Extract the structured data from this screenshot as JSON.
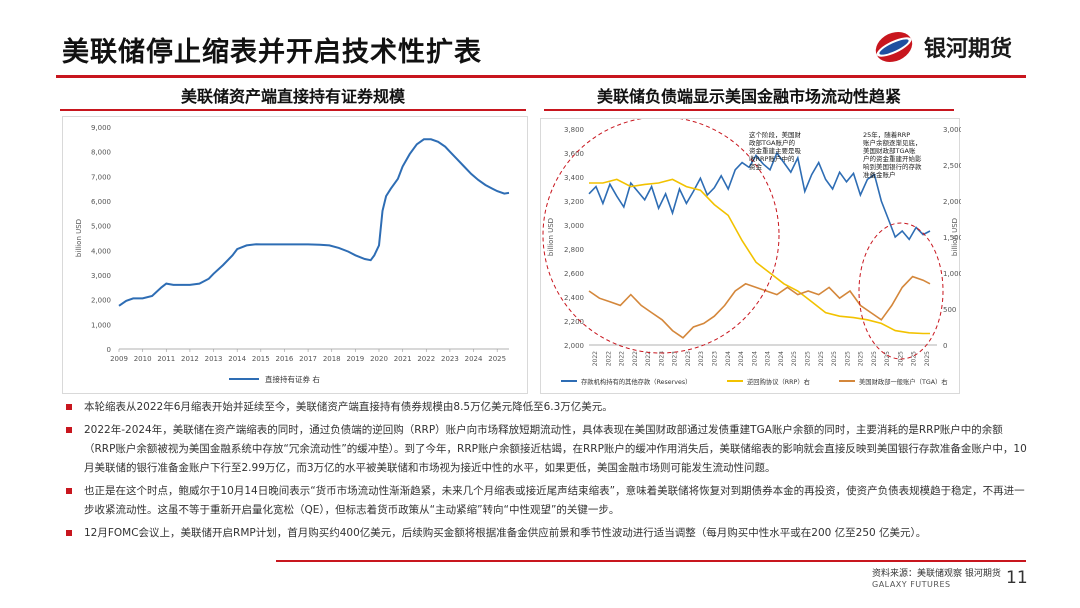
{
  "page": {
    "title": "美联储停止缩表并开启技术性扩表",
    "brand": "银河期货",
    "left_panel_title": "美联储资产端直接持有证券规模",
    "right_panel_title": "美联储负债端显示美国金融市场流动性趋紧",
    "source": "资料来源：美联储观察 银河期货",
    "galaxy": "GALAXY FUTURES",
    "page_number": "11"
  },
  "bullets": [
    "本轮缩表从2022年6月缩表开始并延续至今，美联储资产端直接持有债券规模由8.5万亿美元降低至6.3万亿美元。",
    "2022年-2024年，美联储在资产端缩表的同时，通过负债端的逆回购（RRP）账户向市场释放短期流动性，具体表现在美国财政部通过发债重建TGA账户余额的同时，主要消耗的是RRP账户中的余额（RRP账户余额被视为美国金融系统中存放“冗余流动性”的缓冲垫）。到了今年，RRP账户余额接近枯竭，在RRP账户的缓冲作用消失后，美联储缩表的影响就会直接反映到美国银行存款准备金账户中，10月美联储的银行准备金账户下行至2.99万亿，而3万亿的水平被美联储和市场视为接近中性的水平，如果更低，美国金融市场则可能发生流动性问题。",
    "也正是在这个时点，鲍威尔于10月14日晚间表示“货币市场流动性渐渐趋紧，未来几个月缩表或接近尾声结束缩表”，意味着美联储将恢复对到期债券本金的再投资，使资产负债表规模趋于稳定，不再进一步收紧流动性。这虽不等于重新开启量化宽松（QE），但标志着货币政策从“主动紧缩”转向“中性观望”的关键一步。",
    "12月FOMC会议上，美联储开启RMP计划，首月购买约400亿美元，后续购买金额将根据准备金供应前景和季节性波动进行适当调整（每月购买中性水平或在200 亿至250 亿美元）。"
  ],
  "chart_data": [
    {
      "type": "line",
      "ylabel": "billion USD",
      "ylim": [
        0,
        9000
      ],
      "yticks": [
        "0",
        "1,000",
        "2,000",
        "3,000",
        "4,000",
        "5,000",
        "6,000",
        "7,000",
        "8,000",
        "9,000"
      ],
      "xlim": [
        2009,
        2025.5
      ],
      "xticks": [
        "2009",
        "2010",
        "2011",
        "2012",
        "2013",
        "2014",
        "2015",
        "2016",
        "2017",
        "2018",
        "2019",
        "2020",
        "2021",
        "2022",
        "2023",
        "2024",
        "2025"
      ],
      "legend": "top-left-bottom",
      "colors": {
        "line": "#2e6db4"
      },
      "series": [
        {
          "name": "直接持有证券 右",
          "x": [
            2009.0,
            2009.3,
            2009.6,
            2010.0,
            2010.4,
            2010.8,
            2011.0,
            2011.3,
            2011.6,
            2012.0,
            2012.4,
            2012.8,
            2013.0,
            2013.4,
            2013.8,
            2014.0,
            2014.4,
            2014.8,
            2015.0,
            2015.5,
            2016.0,
            2016.5,
            2017.0,
            2017.5,
            2017.9,
            2018.3,
            2018.7,
            2019.0,
            2019.4,
            2019.65,
            2019.8,
            2020.0,
            2020.15,
            2020.3,
            2020.5,
            2020.8,
            2021.0,
            2021.3,
            2021.6,
            2021.9,
            2022.2,
            2022.5,
            2022.8,
            2023.0,
            2023.3,
            2023.6,
            2023.9,
            2024.2,
            2024.5,
            2024.8,
            2025.0,
            2025.3,
            2025.5
          ],
          "values": [
            1750,
            1950,
            2050,
            2050,
            2150,
            2500,
            2650,
            2600,
            2600,
            2600,
            2650,
            2850,
            3050,
            3400,
            3800,
            4050,
            4200,
            4250,
            4240,
            4240,
            4240,
            4240,
            4240,
            4230,
            4200,
            4100,
            3950,
            3800,
            3650,
            3600,
            3800,
            4200,
            5600,
            6200,
            6500,
            6900,
            7400,
            7900,
            8300,
            8500,
            8500,
            8400,
            8200,
            8000,
            7700,
            7400,
            7100,
            6850,
            6650,
            6500,
            6400,
            6300,
            6330
          ]
        }
      ]
    },
    {
      "type": "line",
      "ylabel": "billion USD",
      "ylim": [
        2000,
        3800
      ],
      "yticks": [
        "2,000",
        "2,200",
        "2,400",
        "2,600",
        "2,800",
        "3,000",
        "3,200",
        "3,400",
        "3,600",
        "3,800"
      ],
      "y2lim": [
        0,
        3000
      ],
      "y2ticks": [
        "0",
        "500",
        "1,000",
        "1,500",
        "2,000",
        "2,500",
        "3,000"
      ],
      "xlim": [
        0,
        100
      ],
      "xticks": [
        "2022",
        "2022",
        "2022",
        "2022",
        "2022",
        "2023",
        "2023",
        "2023",
        "2023",
        "2023",
        "2024",
        "2024",
        "2024",
        "2024",
        "2024",
        "2025",
        "2025",
        "2025",
        "2025",
        "2025",
        "2025",
        "2025",
        "2025",
        "2025",
        "2025",
        "2025"
      ],
      "annotations": [
        "这个阶段，美国财政部TGA账户的资金重建主要是吸收RRP账户中的资金",
        "25年，随着RRP账户余额逐渐见底，美国财政部TGA账户的资金重建开始影响到美国银行的存款准备金账户"
      ],
      "legend": "bottom",
      "colors": {
        "reserves": "#2e6db4",
        "rrp": "#f2c200",
        "tga": "#d4873b",
        "highlight": "#c8161e"
      },
      "series": [
        {
          "name": "存款机构持有的其他存款（Reserves）",
          "axis": "left",
          "x": [
            0,
            2,
            4,
            6,
            8,
            10,
            12,
            14,
            16,
            18,
            20,
            22,
            24,
            26,
            28,
            30,
            32,
            34,
            36,
            38,
            40,
            42,
            44,
            46,
            48,
            50,
            52,
            54,
            56,
            58,
            60,
            62,
            64,
            66,
            68,
            70,
            72,
            74,
            76,
            78,
            80,
            82,
            84,
            86,
            88,
            90,
            92,
            94,
            96,
            98
          ],
          "values": [
            3260,
            3320,
            3180,
            3340,
            3240,
            3150,
            3350,
            3280,
            3210,
            3320,
            3140,
            3260,
            3100,
            3300,
            3180,
            3280,
            3390,
            3250,
            3310,
            3410,
            3300,
            3460,
            3520,
            3480,
            3580,
            3510,
            3460,
            3600,
            3520,
            3440,
            3560,
            3280,
            3420,
            3520,
            3380,
            3300,
            3440,
            3360,
            3430,
            3250,
            3380,
            3420,
            3200,
            3050,
            2900,
            2950,
            2880,
            2980,
            2920,
            2950
          ]
        },
        {
          "name": "逆回购协议（RRP）右",
          "axis": "right",
          "x": [
            0,
            4,
            8,
            12,
            16,
            20,
            24,
            28,
            32,
            36,
            40,
            44,
            48,
            52,
            56,
            60,
            64,
            68,
            72,
            76,
            80,
            84,
            88,
            92,
            96,
            98
          ],
          "values": [
            2250,
            2250,
            2300,
            2200,
            2230,
            2250,
            2300,
            2200,
            2150,
            1950,
            1800,
            1450,
            1150,
            1000,
            850,
            750,
            600,
            450,
            400,
            380,
            350,
            300,
            200,
            170,
            160,
            160
          ]
        },
        {
          "name": "美国财政部一般账户（TGA）右",
          "axis": "right",
          "x": [
            0,
            3,
            6,
            9,
            12,
            15,
            18,
            21,
            24,
            27,
            30,
            33,
            36,
            39,
            42,
            45,
            48,
            51,
            54,
            57,
            60,
            63,
            66,
            69,
            72,
            75,
            78,
            81,
            84,
            87,
            90,
            93,
            96,
            98
          ],
          "values": [
            750,
            650,
            600,
            550,
            700,
            550,
            450,
            350,
            200,
            100,
            250,
            300,
            400,
            550,
            750,
            850,
            800,
            750,
            700,
            800,
            700,
            750,
            700,
            800,
            650,
            750,
            550,
            450,
            350,
            550,
            800,
            950,
            900,
            850
          ]
        }
      ]
    }
  ]
}
